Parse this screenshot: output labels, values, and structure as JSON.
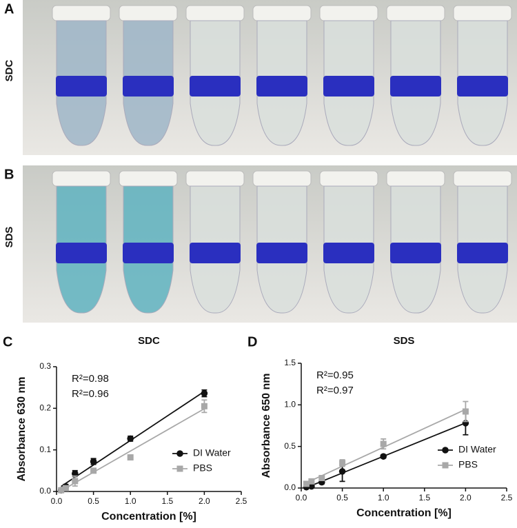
{
  "photos": [
    {
      "label": "A",
      "sample": "SDC"
    },
    {
      "label": "B",
      "sample": "SDS"
    }
  ],
  "chart_data": [
    {
      "type": "line",
      "panel_label": "C",
      "title": "SDC",
      "xlabel": "Concentration [%]",
      "ylabel": "Absorbance 630 nm",
      "x": [
        0.0625,
        0.125,
        0.25,
        0.5,
        1,
        2
      ],
      "xlim": [
        0,
        2.5
      ],
      "xticks": [
        {
          "value": 0,
          "label": "0.0"
        },
        0.5,
        {
          "value": 1,
          "label": "1.0"
        },
        1.5,
        {
          "value": 2,
          "label": "2.0"
        },
        2.5
      ],
      "ylim": [
        0,
        0.3
      ],
      "yticks": [
        {
          "value": 0,
          "label": "0.0"
        },
        0.1,
        0.2,
        0.3
      ],
      "legend": "lower right",
      "series": [
        {
          "name": "DI Water",
          "color": "#111111",
          "marker": "circle",
          "values": [
            0.003,
            0.012,
            0.043,
            0.072,
            0.127,
            0.236
          ],
          "errors": [
            0.004,
            0.005,
            0.007,
            0.007,
            0.006,
            0.008
          ]
        },
        {
          "name": "PBS",
          "color": "#a8a8a8",
          "marker": "square",
          "values": [
            0.003,
            0.008,
            0.025,
            0.05,
            0.082,
            0.205
          ],
          "errors": [
            0.003,
            0.003,
            0.012,
            0.004,
            0.005,
            0.015
          ]
        }
      ],
      "annotations": [
        {
          "text": "R²=0.98",
          "color": "#111111"
        },
        {
          "text": "R²=0.96",
          "color": "#a8a8a8"
        }
      ]
    },
    {
      "type": "line",
      "panel_label": "D",
      "title": "SDS",
      "xlabel": "Concentration [%]",
      "ylabel": "Absorbance 650 nm",
      "x": [
        0.0625,
        0.125,
        0.25,
        0.5,
        1,
        2
      ],
      "xlim": [
        0,
        2.5
      ],
      "xticks": [
        {
          "value": 0,
          "label": "0.0"
        },
        0.5,
        {
          "value": 1,
          "label": "1.0"
        },
        1.5,
        {
          "value": 2,
          "label": "2.0"
        },
        2.5
      ],
      "ylim": [
        0,
        1.5
      ],
      "yticks": [
        {
          "value": 0,
          "label": "0.0"
        },
        0.5,
        {
          "value": 1,
          "label": "1.0"
        },
        1.5
      ],
      "legend": "lower right",
      "series": [
        {
          "name": "DI Water",
          "color": "#111111",
          "marker": "circle",
          "values": [
            0.01,
            0.02,
            0.07,
            0.2,
            0.38,
            0.78
          ],
          "errors": [
            0.01,
            0.01,
            0.02,
            0.12,
            0.02,
            0.14
          ]
        },
        {
          "name": "PBS",
          "color": "#a8a8a8",
          "marker": "square",
          "values": [
            0.05,
            0.08,
            0.12,
            0.3,
            0.53,
            0.92
          ],
          "errors": [
            0.02,
            0.02,
            0.02,
            0.04,
            0.06,
            0.12
          ]
        }
      ],
      "annotations": [
        {
          "text": "R²=0.95",
          "color": "#111111"
        },
        {
          "text": "R²=0.97",
          "color": "#a8a8a8"
        }
      ]
    }
  ]
}
